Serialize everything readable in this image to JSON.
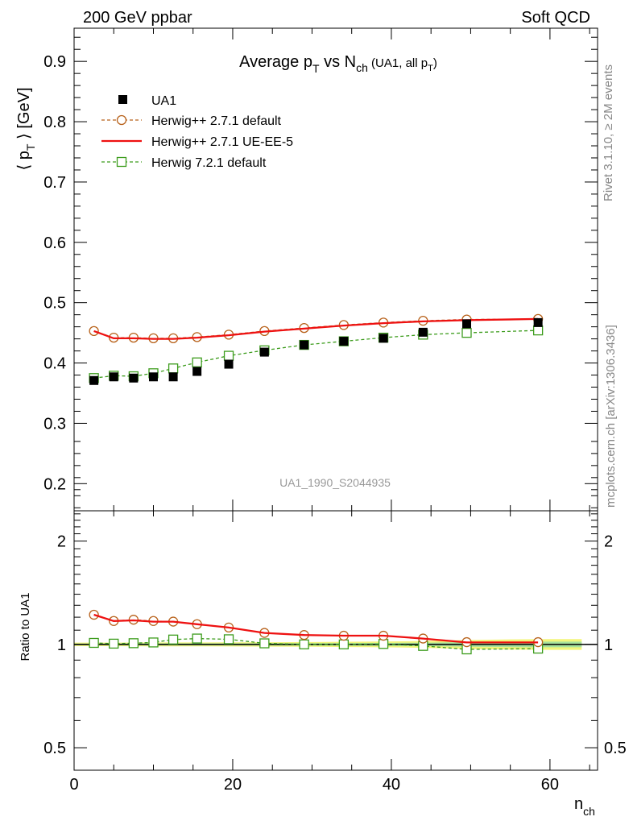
{
  "header": {
    "left": "200 GeV ppbar",
    "right": "Soft QCD"
  },
  "side_labels": {
    "rivet": "Rivet 3.1.10, ≥ 2M events",
    "mcplots": "mcplots.cern.ch [arXiv:1306.3436]"
  },
  "chart_data": [
    {
      "type": "line",
      "title": "Average p_T vs N_ch (UA1, all p_T)",
      "title_parts": {
        "main": "Average p",
        "sub1": "T",
        "mid": " vs N",
        "sub2": "ch",
        "small": " (UA1, all p",
        "small_sub": "T",
        "small_end": ")"
      },
      "ylabel": "⟨ p_T ⟩ [GeV]",
      "ylabel_parts": {
        "pre": "⟨ p",
        "sub": "T",
        "post": " ⟩ [GeV]"
      },
      "watermark": "UA1_1990_S2044935",
      "xlim": [
        0,
        66
      ],
      "ylim": [
        0.155,
        0.955
      ],
      "yticks": [
        0.2,
        0.3,
        0.4,
        0.5,
        0.6,
        0.7,
        0.8,
        0.9
      ],
      "ytick_labels": [
        "0.2",
        "0.3",
        "0.4",
        "0.5",
        "0.6",
        "0.7",
        "0.8",
        "0.9"
      ],
      "legend_position": "top-left",
      "series": [
        {
          "name": "UA1",
          "style": "data",
          "color": "#000000",
          "x": [
            2.5,
            5,
            7.5,
            10,
            12.5,
            15.5,
            19.5,
            24,
            29,
            34,
            39,
            44,
            49.5,
            58.5
          ],
          "y": [
            0.371,
            0.377,
            0.375,
            0.377,
            0.377,
            0.386,
            0.398,
            0.418,
            0.43,
            0.436,
            0.441,
            0.451,
            0.465,
            0.467
          ]
        },
        {
          "name": "Herwig++ 2.7.1 default",
          "style": "dashed-circle",
          "color": "#b8621b",
          "x": [
            2.5,
            5,
            7.5,
            10,
            12.5,
            15.5,
            19.5,
            24,
            29,
            34,
            39,
            44,
            49.5,
            58.5
          ],
          "y": [
            0.453,
            0.442,
            0.442,
            0.441,
            0.441,
            0.443,
            0.447,
            0.453,
            0.458,
            0.463,
            0.467,
            0.47,
            0.472,
            0.473
          ]
        },
        {
          "name": "Herwig++ 2.7.1 UE-EE-5",
          "style": "solid",
          "color": "#ee1111",
          "x": [
            2.5,
            5,
            7.5,
            10,
            12.5,
            15.5,
            19.5,
            24,
            29,
            34,
            39,
            44,
            49.5,
            58.5
          ],
          "y": [
            0.453,
            0.441,
            0.441,
            0.44,
            0.44,
            0.442,
            0.446,
            0.452,
            0.457,
            0.462,
            0.466,
            0.469,
            0.471,
            0.473
          ]
        },
        {
          "name": "Herwig 7.2.1 default",
          "style": "dashed-square",
          "color": "#3c9c1c",
          "x": [
            2.5,
            5,
            7.5,
            10,
            12.5,
            15.5,
            19.5,
            24,
            29,
            34,
            39,
            44,
            49.5,
            58.5
          ],
          "y": [
            0.375,
            0.379,
            0.378,
            0.383,
            0.391,
            0.401,
            0.412,
            0.421,
            0.43,
            0.436,
            0.442,
            0.447,
            0.45,
            0.454
          ]
        }
      ]
    },
    {
      "type": "line",
      "ylabel": "Ratio to UA1",
      "xlabel": "n_ch",
      "xlabel_parts": {
        "main": "n",
        "sub": "ch"
      },
      "xlim": [
        0,
        66
      ],
      "ylim": [
        0.43,
        2.45
      ],
      "yscale": "log",
      "yticks": [
        0.5,
        1,
        2
      ],
      "ytick_labels": [
        "0.5",
        "1",
        "2"
      ],
      "xticks": [
        0,
        20,
        40,
        60
      ],
      "xtick_labels": [
        "0",
        "20",
        "40",
        "60"
      ],
      "band": {
        "x": [
          0,
          5,
          10,
          15,
          20,
          25,
          30,
          35,
          40,
          45,
          50,
          55,
          60,
          64
        ],
        "yellow_half": [
          0.012,
          0.012,
          0.013,
          0.013,
          0.014,
          0.015,
          0.016,
          0.018,
          0.02,
          0.024,
          0.03,
          0.034,
          0.036,
          0.036
        ],
        "green_half": [
          0.006,
          0.006,
          0.007,
          0.007,
          0.007,
          0.008,
          0.008,
          0.009,
          0.01,
          0.012,
          0.016,
          0.018,
          0.019,
          0.019
        ]
      },
      "series": [
        {
          "name": "Herwig++ 2.7.1 default",
          "style": "dashed-circle",
          "color": "#b8621b",
          "x": [
            2.5,
            5,
            7.5,
            10,
            12.5,
            15.5,
            19.5,
            24,
            29,
            34,
            39,
            44,
            49.5,
            58.5
          ],
          "y": [
            1.22,
            1.17,
            1.18,
            1.17,
            1.165,
            1.145,
            1.12,
            1.08,
            1.065,
            1.06,
            1.06,
            1.04,
            1.015,
            1.015
          ]
        },
        {
          "name": "Herwig++ 2.7.1 UE-EE-5",
          "style": "solid",
          "color": "#ee1111",
          "x": [
            2.5,
            5,
            7.5,
            10,
            12.5,
            15.5,
            19.5,
            24,
            29,
            34,
            39,
            44,
            49.5,
            58.5
          ],
          "y": [
            1.22,
            1.17,
            1.175,
            1.165,
            1.165,
            1.145,
            1.12,
            1.08,
            1.065,
            1.06,
            1.06,
            1.04,
            1.013,
            1.013
          ]
        },
        {
          "name": "Herwig 7.2.1 default",
          "style": "dashed-square",
          "color": "#3c9c1c",
          "x": [
            2.5,
            5,
            7.5,
            10,
            12.5,
            15.5,
            19.5,
            24,
            29,
            34,
            39,
            44,
            49.5,
            58.5
          ],
          "y": [
            1.01,
            1.005,
            1.008,
            1.013,
            1.033,
            1.04,
            1.035,
            1.007,
            1.0,
            1.0,
            1.003,
            0.99,
            0.967,
            0.972
          ]
        }
      ]
    }
  ]
}
